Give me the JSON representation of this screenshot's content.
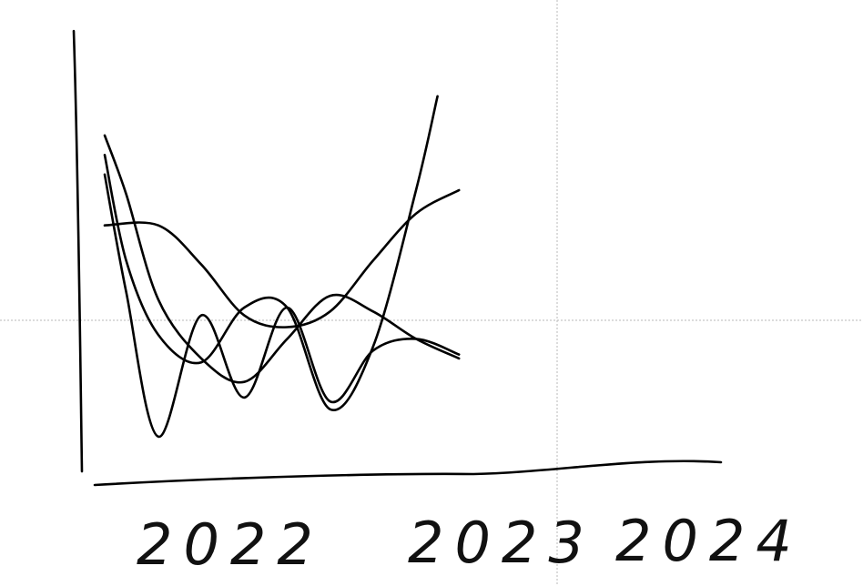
{
  "chart_data": {
    "type": "line",
    "title": "",
    "xlabel": "",
    "ylabel": "",
    "x_tick_labels": [
      "2022",
      "2023",
      "2024"
    ],
    "x_range": [
      2021.75,
      2024.4
    ],
    "y_range": [
      0,
      100
    ],
    "grid": false,
    "legend": "none",
    "line_color": "#000000",
    "series": [
      {
        "x": [
          2021.75,
          2021.85,
          2022.0,
          2022.2,
          2022.4,
          2022.6,
          2022.8,
          2023.0,
          2023.2,
          2023.4
        ],
        "y": [
          84,
          69,
          42,
          27,
          21,
          32,
          43,
          39,
          32,
          27
        ]
      },
      {
        "x": [
          2021.75,
          2021.85,
          2022.0,
          2022.2,
          2022.4,
          2022.6,
          2022.8,
          2023.0,
          2023.2,
          2023.4
        ],
        "y": [
          74,
          44,
          7,
          38,
          17,
          40,
          16,
          29,
          32,
          28
        ]
      },
      {
        "x": [
          2021.75,
          2022.0,
          2022.2,
          2022.4,
          2022.6,
          2022.8,
          2023.0,
          2023.2,
          2023.4
        ],
        "y": [
          61,
          61,
          51,
          38,
          35,
          39,
          52,
          64,
          70
        ]
      },
      {
        "x": [
          2021.75,
          2021.85,
          2022.0,
          2022.2,
          2022.4,
          2022.6,
          2022.8,
          2023.0,
          2023.2,
          2023.3
        ],
        "y": [
          79,
          52,
          33,
          26,
          40,
          40,
          14,
          30,
          70,
          94
        ]
      }
    ]
  }
}
